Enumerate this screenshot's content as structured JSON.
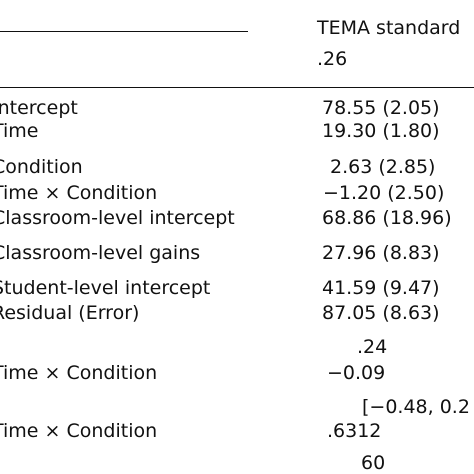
{
  "header": {
    "column_title": "TEMA standard",
    "column_subtitle": ".26"
  },
  "rows": [
    {
      "label": "Intercept",
      "value": "78.55 (2.05)"
    },
    {
      "label": "Time",
      "value": "19.30 (1.80)"
    },
    {
      "label": "Condition",
      "value": "2.63 (2.85)"
    },
    {
      "label": "Time × Condition",
      "value": "−1.20 (2.50)"
    },
    {
      "label": "Classroom-level intercept",
      "value": "68.86 (18.96)"
    },
    {
      "label": "Classroom-level gains",
      "value": "27.96 (8.83)"
    },
    {
      "label": "Student-level intercept",
      "value": "41.59 (9.47)"
    },
    {
      "label": "Residual (Error)",
      "value": "87.05 (8.63)"
    },
    {
      "label": "",
      "value": ".24"
    },
    {
      "label": "Time × Condition",
      "value": "−0.09"
    },
    {
      "label": "",
      "value": "[−0.48, 0.2"
    },
    {
      "label": "Time × Condition",
      "value": ".6312"
    },
    {
      "label": "",
      "value": "60"
    }
  ]
}
